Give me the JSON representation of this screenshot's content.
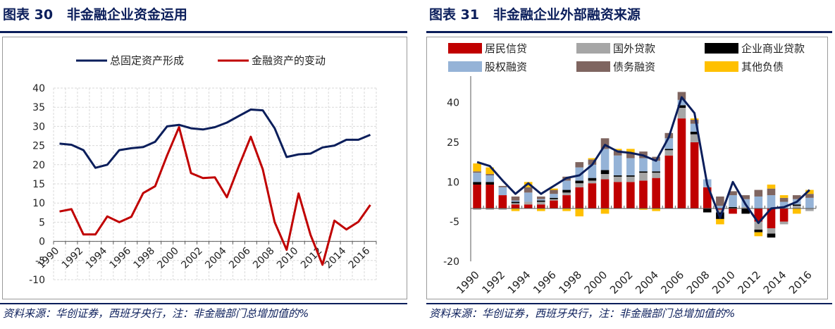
{
  "left": {
    "title_prefix": "图表 30",
    "title": "非金融企业资金运用",
    "source": "资料来源：华创证券，西班牙央行，注：非金融部门总增加值的%"
  },
  "right": {
    "title_prefix": "图表 31",
    "title": "非金融企业外部融资来源",
    "source": "资料来源：华创证券，西班牙央行，注：非金融部门总增加值的%"
  },
  "colors": {
    "navy": "#0b1e5b",
    "red": "#c00000",
    "grey": "#a6a6a6",
    "black": "#000000",
    "lightblue": "#95b3d7",
    "brown": "#7f6560",
    "gold": "#ffc000"
  },
  "chart_data": [
    {
      "type": "line",
      "x": [
        "1990",
        "1991",
        "1992",
        "1993",
        "1994",
        "1995",
        "1996",
        "1997",
        "1998",
        "1999",
        "2000",
        "2001",
        "2002",
        "2003",
        "2004",
        "2005",
        "2006",
        "2007",
        "2008",
        "2009",
        "2010",
        "2011",
        "2012",
        "2013",
        "2014",
        "2015",
        "2016"
      ],
      "x_tick_labels": [
        "1990",
        "1992",
        "1994",
        "1996",
        "1998",
        "2000",
        "2002",
        "2004",
        "2006",
        "2008",
        "2010",
        "2012",
        "2014",
        "2016"
      ],
      "ylim": [
        -10,
        40
      ],
      "y_ticks": [
        -10,
        -5,
        0,
        5,
        10,
        15,
        20,
        25,
        30,
        35,
        40
      ],
      "grid": true,
      "legend_position": "top",
      "series": [
        {
          "name": "总固定资产形成",
          "color": "#0b1e5b",
          "values": [
            25.5,
            25.2,
            23.8,
            19.2,
            20.0,
            23.8,
            24.3,
            24.6,
            26.0,
            30.0,
            30.4,
            29.5,
            29.2,
            29.8,
            31.0,
            32.7,
            34.4,
            34.2,
            29.5,
            22.0,
            22.7,
            22.9,
            24.5,
            25.0,
            26.5,
            26.5,
            27.8
          ]
        },
        {
          "name": "金融资产的变动",
          "color": "#c00000",
          "values": [
            7.8,
            8.4,
            1.8,
            1.8,
            6.5,
            5.0,
            6.4,
            12.6,
            14.4,
            22.4,
            29.8,
            17.8,
            16.5,
            16.7,
            11.5,
            19.6,
            27.3,
            18.8,
            5.0,
            -2.2,
            12.5,
            1.7,
            -6.1,
            5.4,
            3.1,
            5.1,
            9.5
          ]
        }
      ]
    },
    {
      "type": "bar",
      "stacked": true,
      "categories": [
        "1990",
        "1991",
        "1992",
        "1993",
        "1994",
        "1995",
        "1996",
        "1997",
        "1998",
        "1999",
        "2000",
        "2001",
        "2002",
        "2003",
        "2004",
        "2005",
        "2006",
        "2007",
        "2008",
        "2009",
        "2010",
        "2011",
        "2012",
        "2013",
        "2014",
        "2015",
        "2016"
      ],
      "x_tick_labels": [
        "1990",
        "1992",
        "1994",
        "1996",
        "1998",
        "2000",
        "2002",
        "2004",
        "2006",
        "2008",
        "2010",
        "2012",
        "2014",
        "2016"
      ],
      "ylim": [
        -20,
        50
      ],
      "y_ticks": [
        -20,
        -5,
        10,
        25,
        40
      ],
      "legend_position": "top",
      "series": [
        {
          "name": "居民信贷",
          "color": "#c00000",
          "values": [
            9.0,
            9.0,
            5.0,
            1.5,
            1.5,
            1.5,
            3.0,
            5.0,
            8.0,
            9.5,
            11.0,
            10.0,
            10.0,
            10.5,
            11.5,
            20.0,
            34.0,
            25.0,
            8.0,
            -0.5,
            -2.0,
            0.0,
            -5.0,
            -7.5,
            -5.0,
            0.0,
            0.0
          ]
        },
        {
          "name": "国外贷款",
          "color": "#a6a6a6",
          "values": [
            -0.5,
            -0.5,
            -0.5,
            0.5,
            1.0,
            1.0,
            0.5,
            1.0,
            1.5,
            1.0,
            2.0,
            2.0,
            2.0,
            3.0,
            2.0,
            2.0,
            4.0,
            3.0,
            0.0,
            -1.0,
            0.0,
            0.5,
            -3.0,
            -2.0,
            -1.0,
            1.0,
            -1.0
          ]
        },
        {
          "name": "企业商业贷款",
          "color": "#000000",
          "values": [
            1.0,
            1.0,
            0.0,
            0.5,
            0.0,
            0.5,
            0.5,
            1.0,
            1.0,
            1.0,
            1.5,
            0.5,
            0.5,
            0.5,
            0.5,
            0.5,
            1.0,
            1.0,
            -1.5,
            -2.5,
            0.5,
            -2.0,
            -1.0,
            -1.5,
            0.0,
            0.5,
            0.0
          ]
        },
        {
          "name": "股权融资",
          "color": "#95b3d7",
          "values": [
            3.5,
            2.5,
            3.0,
            0.5,
            3.5,
            0.5,
            1.5,
            3.5,
            5.0,
            5.0,
            8.0,
            7.5,
            6.5,
            5.0,
            4.0,
            4.0,
            2.0,
            3.0,
            3.0,
            1.0,
            4.5,
            3.0,
            4.5,
            5.0,
            2.5,
            2.0,
            4.0
          ]
        },
        {
          "name": "债务融资",
          "color": "#7f6560",
          "values": [
            0.5,
            0.5,
            0.5,
            1.5,
            2.0,
            1.0,
            1.5,
            1.5,
            2.0,
            2.0,
            4.0,
            2.0,
            2.0,
            2.5,
            1.5,
            2.0,
            3.0,
            1.5,
            0.0,
            3.5,
            1.5,
            1.5,
            2.5,
            2.5,
            1.5,
            1.5,
            1.5
          ]
        },
        {
          "name": "其他负债",
          "color": "#ffc000",
          "values": [
            3.0,
            2.5,
            0.0,
            -1.0,
            2.0,
            -1.0,
            0.5,
            -1.0,
            -3.0,
            0.5,
            -2.0,
            0.5,
            1.5,
            -0.5,
            -1.0,
            0.0,
            0.0,
            0.5,
            0.0,
            -2.0,
            0.0,
            0.0,
            -1.5,
            1.5,
            1.0,
            -2.0,
            1.5
          ]
        },
        {
          "name": "",
          "type": "line",
          "color": "#0b1e5b",
          "values": [
            17.5,
            16.0,
            10.5,
            5.5,
            9.5,
            5.5,
            8.5,
            11.5,
            12.5,
            16.5,
            24.0,
            21.5,
            21.0,
            20.0,
            18.0,
            27.0,
            42.0,
            36.0,
            9.0,
            -3.5,
            10.0,
            1.5,
            -5.5,
            0.0,
            0.5,
            2.5,
            7.0
          ]
        }
      ]
    }
  ]
}
